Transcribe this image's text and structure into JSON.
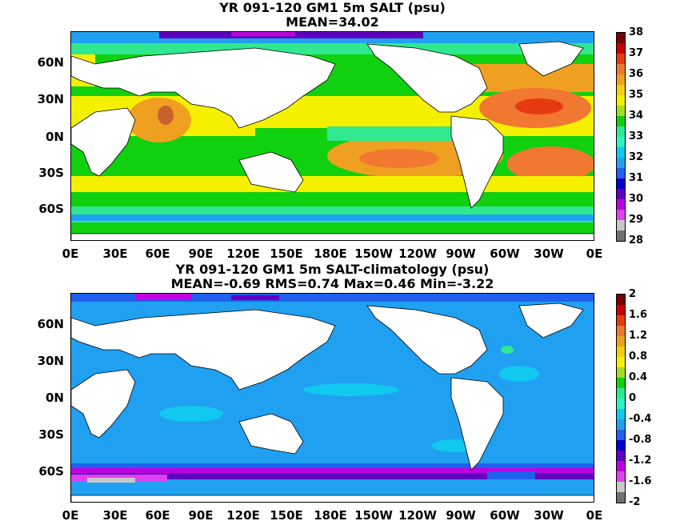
{
  "panel1": {
    "title": "YR 091-120 GM1 5m SALT (psu)",
    "subtitle": "MEAN=34.02",
    "lat_labels": [
      "60N",
      "30N",
      "0N",
      "30S",
      "60S"
    ],
    "lon_labels": [
      "0E",
      "30E",
      "60E",
      "90E",
      "120E",
      "150E",
      "180E",
      "150W",
      "120W",
      "90W",
      "60W",
      "30W",
      "0E"
    ],
    "colorbar_ticks": [
      "38",
      "37",
      "36",
      "35",
      "34",
      "33",
      "32",
      "31",
      "30",
      "29",
      "28"
    ],
    "colorbar_colors": [
      "#7a0000",
      "#c80000",
      "#e83a10",
      "#f07830",
      "#f0a020",
      "#f5cf10",
      "#f5f000",
      "#a0e020",
      "#10d010",
      "#30e890",
      "#30f0c8",
      "#10c8f0",
      "#20a0f0",
      "#2060f0",
      "#0000d0",
      "#6000c0",
      "#c000e0",
      "#e040f0",
      "#c8c8c8",
      "#707070"
    ]
  },
  "panel2": {
    "title": "YR 091-120 GM1 5m SALT-climatology (psu)",
    "subtitle": "MEAN=-0.69   RMS=0.74   Max=0.46   Min=-3.22",
    "lat_labels": [
      "60N",
      "30N",
      "0N",
      "30S",
      "60S"
    ],
    "lon_labels": [
      "0E",
      "30E",
      "60E",
      "90E",
      "120E",
      "150E",
      "180E",
      "150W",
      "120W",
      "90W",
      "60W",
      "30W",
      "0E"
    ],
    "colorbar_ticks": [
      "2",
      "1.6",
      "1.2",
      "0.8",
      "0.4",
      "0",
      "-0.4",
      "-0.8",
      "-1.2",
      "-1.6",
      "-2"
    ],
    "colorbar_colors": [
      "#7a0000",
      "#c80000",
      "#e83a10",
      "#f07830",
      "#f0a020",
      "#f5cf10",
      "#f5f000",
      "#a0e020",
      "#10d010",
      "#30e890",
      "#30f0c8",
      "#10c8f0",
      "#20a0f0",
      "#2060f0",
      "#0000d0",
      "#6000c0",
      "#c000e0",
      "#e040f0",
      "#c8c8c8",
      "#707070"
    ]
  }
}
